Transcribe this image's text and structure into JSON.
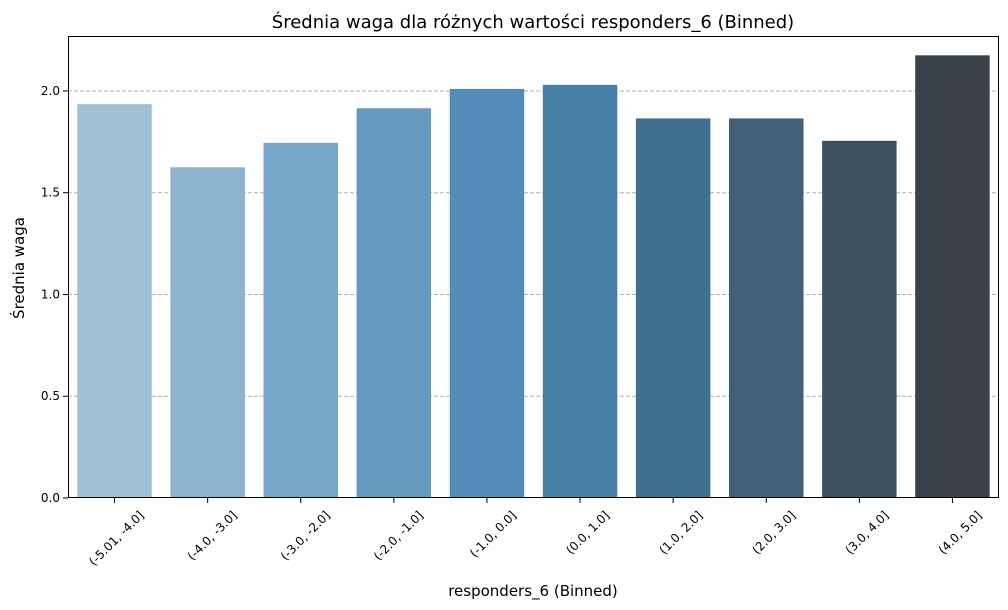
{
  "chart_data": {
    "type": "bar",
    "title": "Średnia waga dla różnych wartości responders_6 (Binned)",
    "xlabel": "responders_6 (Binned)",
    "ylabel": "Średnia waga",
    "categories": [
      "(-5.01, -4.0]",
      "(-4.0, -3.0]",
      "(-3.0, -2.0]",
      "(-2.0, -1.0]",
      "(-1.0, 0.0]",
      "(0.0, 1.0]",
      "(1.0, 2.0]",
      "(2.0, 3.0]",
      "(3.0, 4.0]",
      "(4.0, 5.0]"
    ],
    "values": [
      1.935,
      1.625,
      1.745,
      1.915,
      2.01,
      2.03,
      1.865,
      1.865,
      1.755,
      2.175
    ],
    "ylim": [
      0,
      2.27
    ],
    "yticks": [
      "0.0",
      "0.5",
      "1.0",
      "1.5",
      "2.0"
    ],
    "grid": "y-dashed",
    "colors": [
      "#9fc1d6",
      "#8bb3cf",
      "#75a6c8",
      "#6599be",
      "#548cb8",
      "#477fa7",
      "#416f8f",
      "#405f79",
      "#3d5162",
      "#394349"
    ]
  }
}
